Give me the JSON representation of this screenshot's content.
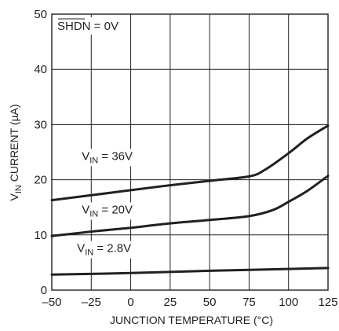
{
  "chart_data": {
    "type": "line",
    "xlabel": "JUNCTION TEMPERATURE (°C)",
    "ylabel": {
      "main": "V",
      "sub": "IN",
      "rest": " CURRENT (µA)"
    },
    "xlim": [
      -50,
      125
    ],
    "ylim": [
      0,
      50
    ],
    "xticks": [
      -50,
      -25,
      0,
      25,
      50,
      75,
      100,
      125
    ],
    "xtick_labels": [
      "–50",
      "–25",
      "0",
      "25",
      "50",
      "75",
      "100",
      "125"
    ],
    "yticks": [
      0,
      10,
      20,
      30,
      40,
      50
    ],
    "ytick_labels": [
      "0",
      "10",
      "20",
      "30",
      "40",
      "50"
    ],
    "grid": true,
    "annotation": {
      "overline": "SHDN",
      "rest": " = 0V"
    },
    "series": [
      {
        "label_main": "V",
        "label_sub": "IN",
        "label_rest": " = 36V",
        "x": [
          -50,
          -25,
          0,
          25,
          50,
          75,
          85,
          100,
          112,
          125
        ],
        "values": [
          16.3,
          17.2,
          18.1,
          19.0,
          19.8,
          20.6,
          21.8,
          24.8,
          27.5,
          29.8
        ]
      },
      {
        "label_main": "V",
        "label_sub": "IN",
        "label_rest": " = 20V",
        "x": [
          -50,
          -25,
          0,
          25,
          50,
          75,
          90,
          100,
          112,
          125
        ],
        "values": [
          9.8,
          10.6,
          11.3,
          12.1,
          12.7,
          13.4,
          14.5,
          16.0,
          18.0,
          20.7
        ]
      },
      {
        "label_main": "V",
        "label_sub": "IN",
        "label_rest": " = 2.8V",
        "x": [
          -50,
          0,
          50,
          125
        ],
        "values": [
          2.8,
          3.1,
          3.5,
          4.0
        ]
      }
    ]
  }
}
